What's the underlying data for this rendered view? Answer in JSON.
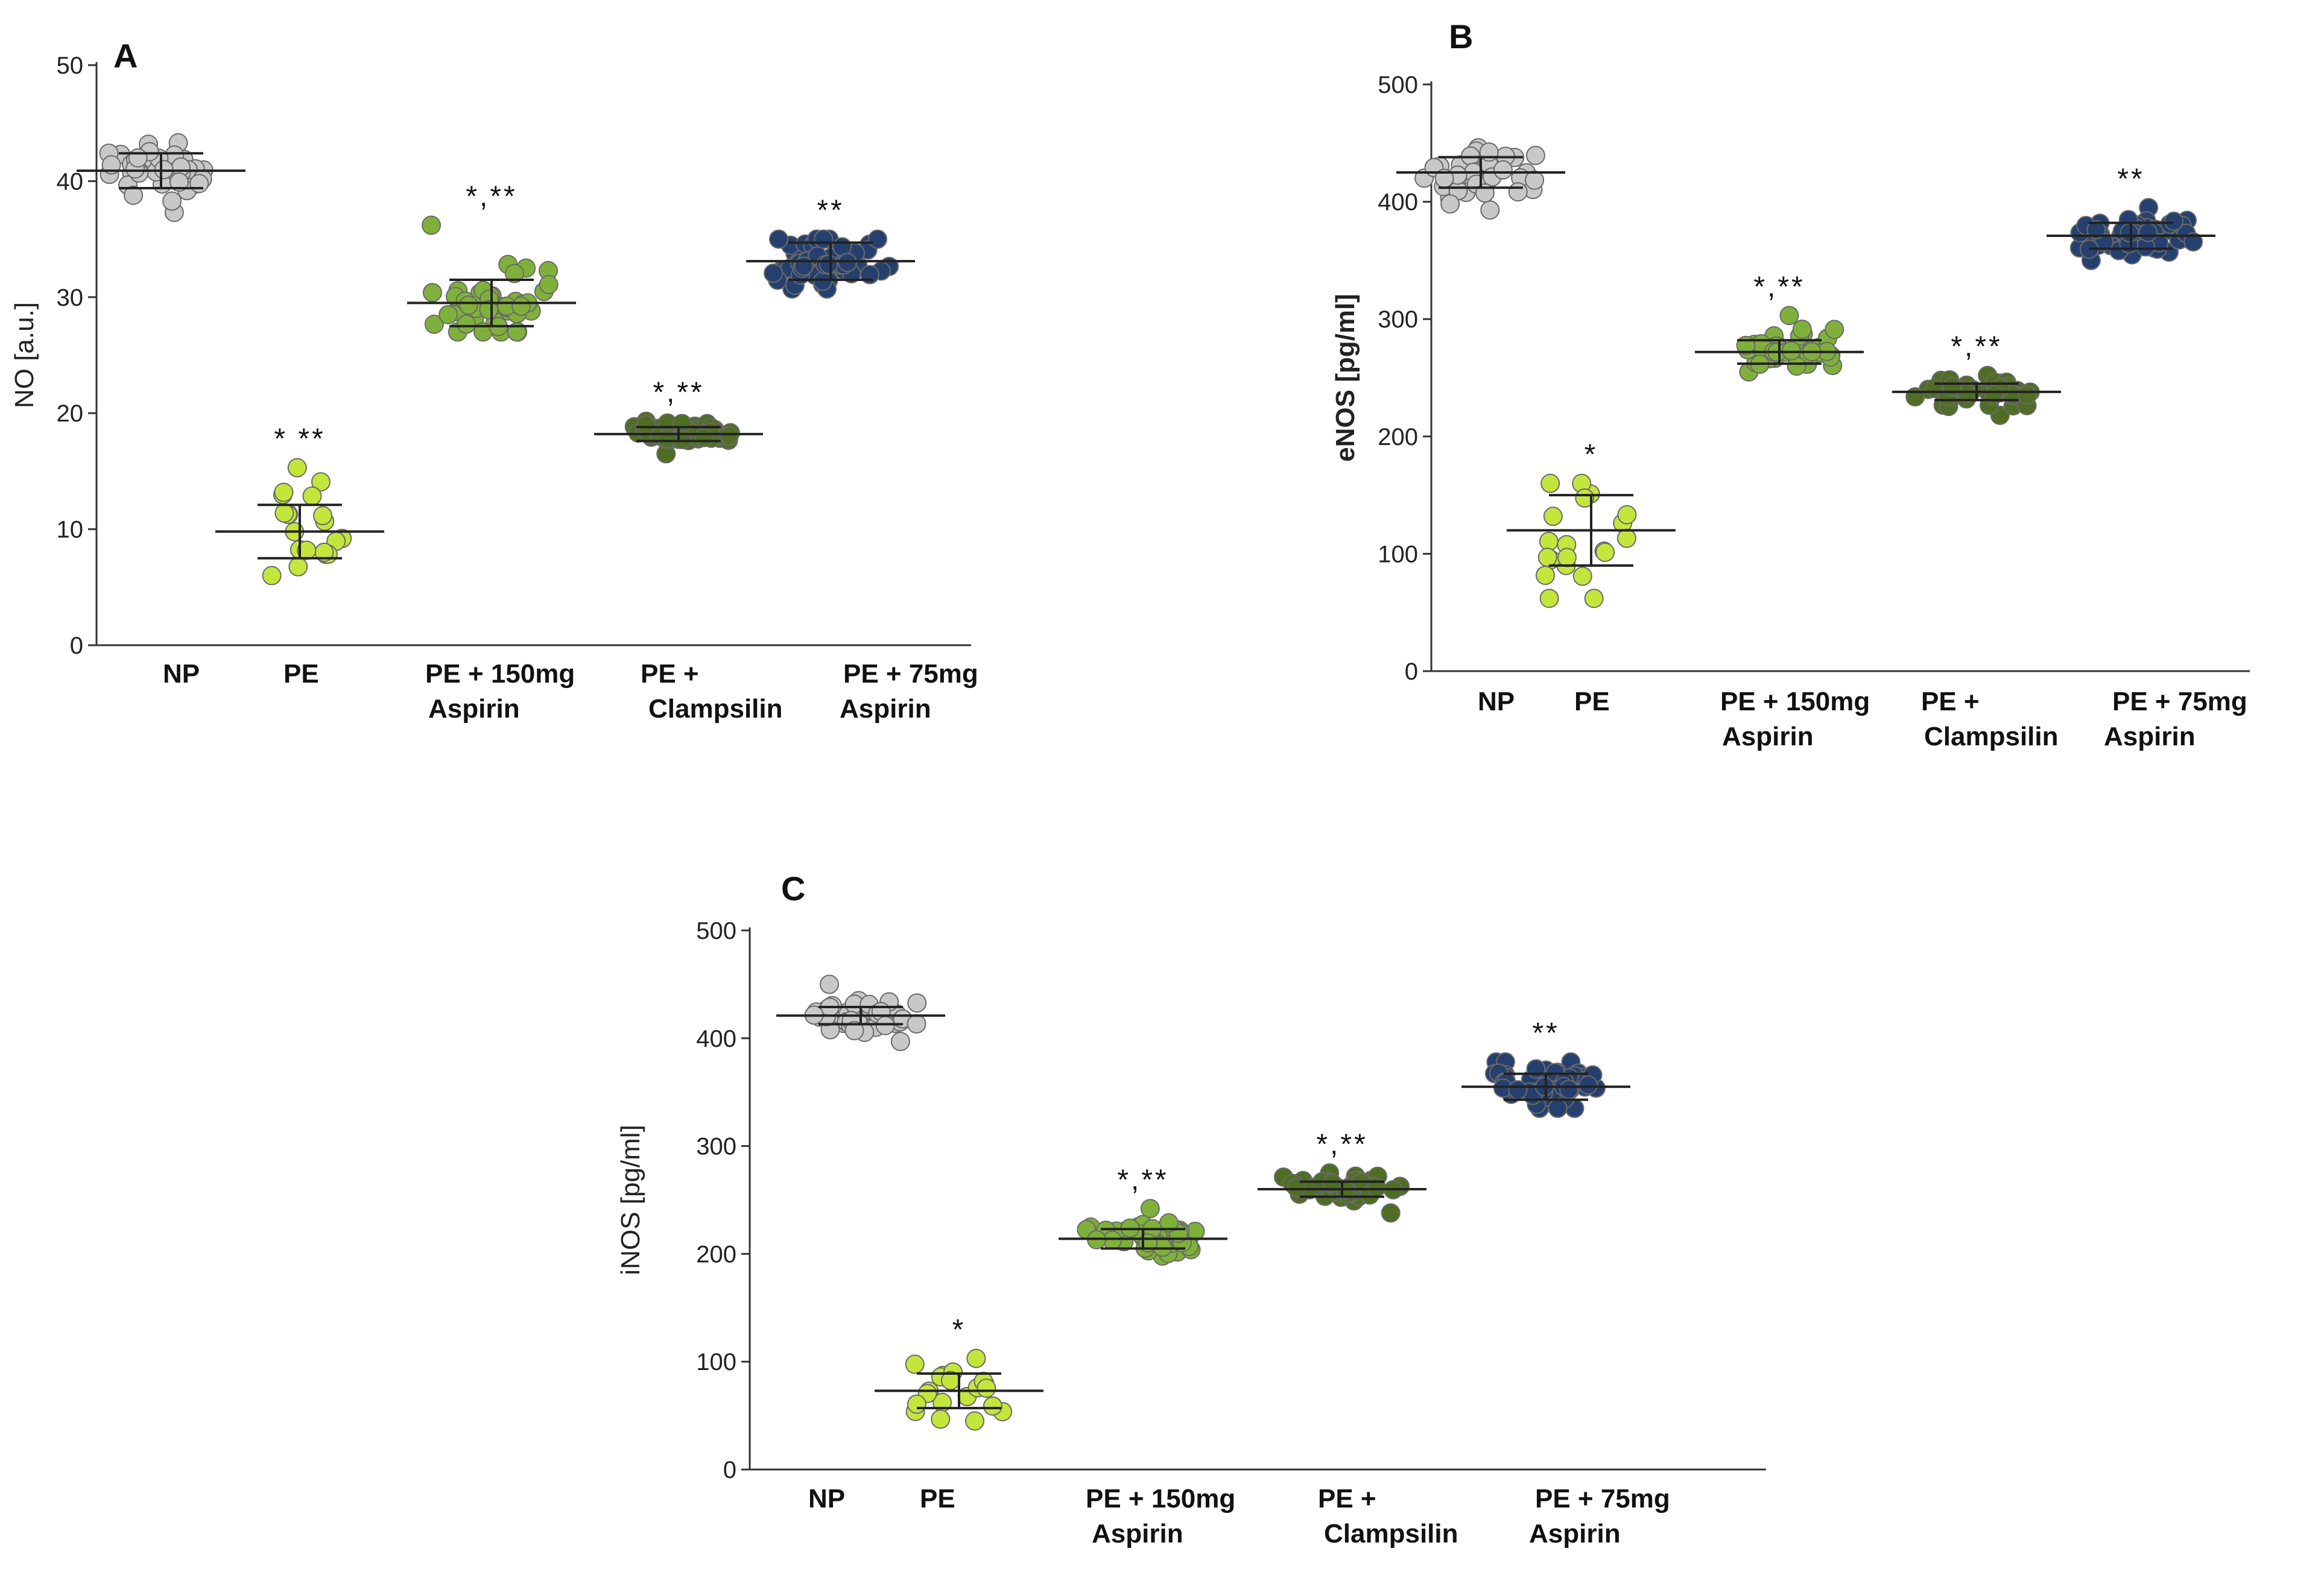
{
  "figure": {
    "colors": {
      "NP": "#c8c8c8",
      "PE": "#c4e63c",
      "PE_150": "#7fb13a",
      "PE_clamp": "#4f6e24",
      "PE_75": "#25406e",
      "axis": "#333333",
      "mean_line": "#222222"
    }
  },
  "chart_data": [
    {
      "id": "A",
      "type": "scatter",
      "panel_label": "A",
      "ylabel": "NO [a.u.]",
      "ylim": [
        0,
        50
      ],
      "yticks": [
        0,
        10,
        20,
        30,
        40,
        50
      ],
      "categories": [
        {
          "label_lines": [
            "NP"
          ],
          "mean": 40.9,
          "sd": 1.5,
          "min": 37.3,
          "max": 43.3,
          "n": 40,
          "color_key": "NP",
          "annotation": ""
        },
        {
          "label_lines": [
            "PE"
          ],
          "mean": 9.8,
          "sd": 2.3,
          "min": 6.0,
          "max": 15.3,
          "n": 20,
          "color_key": "PE",
          "annotation": "* **"
        },
        {
          "label_lines": [
            "PE + 150mg",
            "Aspirin"
          ],
          "mean": 29.5,
          "sd": 2.0,
          "min": 27.0,
          "max": 36.2,
          "n": 44,
          "color_key": "PE_150",
          "annotation": "*,**"
        },
        {
          "label_lines": [
            "PE +",
            "Clampsilin"
          ],
          "mean": 18.2,
          "sd": 0.6,
          "min": 16.5,
          "max": 19.3,
          "n": 44,
          "color_key": "PE_clamp",
          "annotation": "*,**"
        },
        {
          "label_lines": [
            "PE + 75mg",
            "Aspirin"
          ],
          "mean": 33.1,
          "sd": 1.6,
          "min": 30.7,
          "max": 35.0,
          "n": 56,
          "color_key": "PE_75",
          "annotation": "**"
        }
      ]
    },
    {
      "id": "B",
      "type": "scatter",
      "panel_label": "B",
      "ylabel": "eNOS [pg/ml]",
      "ylim": [
        0,
        500
      ],
      "yticks": [
        0,
        100,
        200,
        300,
        400,
        500
      ],
      "categories": [
        {
          "label_lines": [
            "NP"
          ],
          "mean": 425,
          "sd": 13,
          "min": 393,
          "max": 446,
          "n": 40,
          "color_key": "NP",
          "annotation": ""
        },
        {
          "label_lines": [
            "PE"
          ],
          "mean": 120,
          "sd": 30,
          "min": 62,
          "max": 160,
          "n": 20,
          "color_key": "PE",
          "annotation": "*"
        },
        {
          "label_lines": [
            "PE + 150mg",
            "Aspirin"
          ],
          "mean": 272,
          "sd": 10,
          "min": 255,
          "max": 303,
          "n": 44,
          "color_key": "PE_150",
          "annotation": "*,**"
        },
        {
          "label_lines": [
            "PE +",
            "Clampsilin"
          ],
          "mean": 238,
          "sd": 7,
          "min": 218,
          "max": 252,
          "n": 44,
          "color_key": "PE_clamp",
          "annotation": "*,**"
        },
        {
          "label_lines": [
            "PE + 75mg",
            "Aspirin"
          ],
          "mean": 371,
          "sd": 11,
          "min": 350,
          "max": 395,
          "n": 56,
          "color_key": "PE_75",
          "annotation": "**"
        }
      ]
    },
    {
      "id": "C",
      "type": "scatter",
      "panel_label": "C",
      "ylabel": "iNOS [pg/ml]",
      "ylim": [
        0,
        500
      ],
      "yticks": [
        0,
        100,
        200,
        300,
        400,
        500
      ],
      "categories": [
        {
          "label_lines": [
            "NP"
          ],
          "mean": 421,
          "sd": 8,
          "min": 397,
          "max": 450,
          "n": 40,
          "color_key": "NP",
          "annotation": ""
        },
        {
          "label_lines": [
            "PE"
          ],
          "mean": 73,
          "sd": 16,
          "min": 45,
          "max": 103,
          "n": 20,
          "color_key": "PE",
          "annotation": "*"
        },
        {
          "label_lines": [
            "PE + 150mg",
            "Aspirin"
          ],
          "mean": 214,
          "sd": 9,
          "min": 198,
          "max": 242,
          "n": 44,
          "color_key": "PE_150",
          "annotation": "*,**"
        },
        {
          "label_lines": [
            "PE +",
            "Clampsilin"
          ],
          "mean": 260,
          "sd": 7,
          "min": 238,
          "max": 275,
          "n": 44,
          "color_key": "PE_clamp",
          "annotation": "*,**"
        },
        {
          "label_lines": [
            "PE + 75mg",
            "Aspirin"
          ],
          "mean": 355,
          "sd": 12,
          "min": 335,
          "max": 378,
          "n": 56,
          "color_key": "PE_75",
          "annotation": "**"
        }
      ]
    }
  ]
}
